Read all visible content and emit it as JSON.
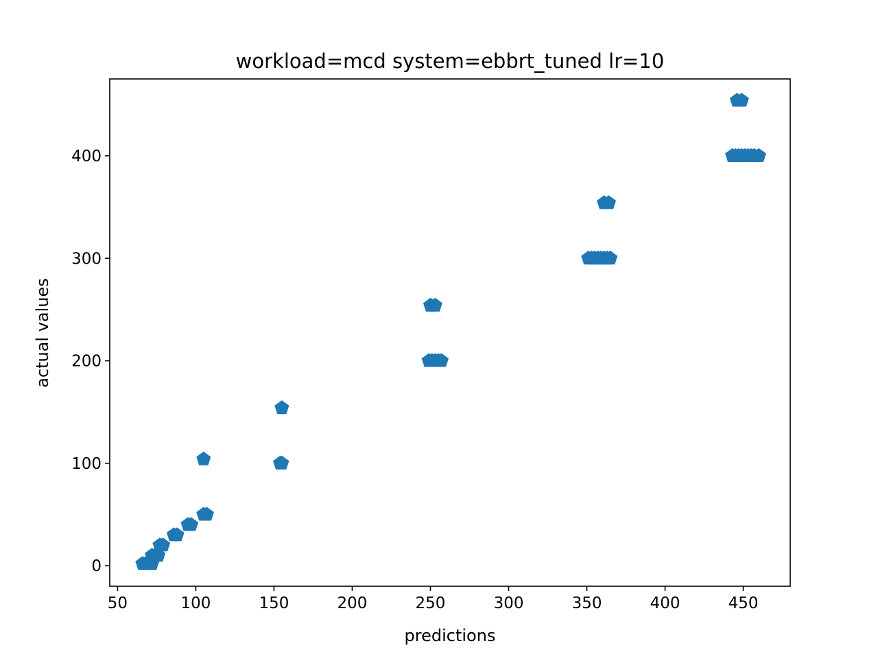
{
  "chart_data": {
    "type": "scatter",
    "title": "workload=mcd system=ebbrt_tuned lr=10",
    "xlabel": "predictions",
    "ylabel": "actual values",
    "xlim": [
      45,
      480
    ],
    "ylim": [
      -20,
      475
    ],
    "xticks": [
      50,
      100,
      150,
      200,
      250,
      300,
      350,
      400,
      450
    ],
    "yticks": [
      0,
      100,
      200,
      300,
      400
    ],
    "grid": false,
    "marker": "pentagon",
    "color": "#1f77b4",
    "points": [
      {
        "x": 66,
        "y": 2
      },
      {
        "x": 68,
        "y": 2
      },
      {
        "x": 70,
        "y": 2
      },
      {
        "x": 72,
        "y": 2
      },
      {
        "x": 72,
        "y": 10
      },
      {
        "x": 74,
        "y": 10
      },
      {
        "x": 76,
        "y": 10
      },
      {
        "x": 77,
        "y": 20
      },
      {
        "x": 79,
        "y": 20
      },
      {
        "x": 86,
        "y": 30
      },
      {
        "x": 88,
        "y": 30
      },
      {
        "x": 95,
        "y": 40
      },
      {
        "x": 97,
        "y": 40
      },
      {
        "x": 105,
        "y": 50
      },
      {
        "x": 107,
        "y": 50
      },
      {
        "x": 105,
        "y": 104
      },
      {
        "x": 154,
        "y": 100
      },
      {
        "x": 155,
        "y": 100
      },
      {
        "x": 155,
        "y": 154
      },
      {
        "x": 249,
        "y": 200
      },
      {
        "x": 251,
        "y": 200
      },
      {
        "x": 253,
        "y": 200
      },
      {
        "x": 255,
        "y": 200
      },
      {
        "x": 257,
        "y": 200
      },
      {
        "x": 250,
        "y": 254
      },
      {
        "x": 253,
        "y": 254
      },
      {
        "x": 351,
        "y": 300
      },
      {
        "x": 353,
        "y": 300
      },
      {
        "x": 355,
        "y": 300
      },
      {
        "x": 357,
        "y": 300
      },
      {
        "x": 359,
        "y": 300
      },
      {
        "x": 361,
        "y": 300
      },
      {
        "x": 363,
        "y": 300
      },
      {
        "x": 365,
        "y": 300
      },
      {
        "x": 361,
        "y": 354
      },
      {
        "x": 364,
        "y": 354
      },
      {
        "x": 443,
        "y": 400
      },
      {
        "x": 445,
        "y": 400
      },
      {
        "x": 447,
        "y": 400
      },
      {
        "x": 449,
        "y": 400
      },
      {
        "x": 451,
        "y": 400
      },
      {
        "x": 453,
        "y": 400
      },
      {
        "x": 455,
        "y": 400
      },
      {
        "x": 457,
        "y": 400
      },
      {
        "x": 460,
        "y": 400
      },
      {
        "x": 446,
        "y": 454
      },
      {
        "x": 449,
        "y": 454
      }
    ]
  }
}
